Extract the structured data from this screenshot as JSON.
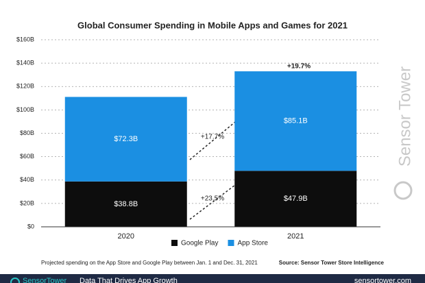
{
  "chart_data": {
    "type": "stacked-bar",
    "title": "Global Consumer Spending in Mobile Apps and Games for 2021",
    "categories": [
      "2020",
      "2021"
    ],
    "series": [
      {
        "name": "Google Play",
        "color": "#0d0d0d",
        "values": [
          38.8,
          47.9
        ],
        "value_labels": [
          "$38.8B",
          "$47.9B"
        ]
      },
      {
        "name": "App Store",
        "color": "#1b8fe2",
        "values": [
          72.3,
          85.1
        ],
        "value_labels": [
          "$72.3B",
          "$85.1B"
        ]
      }
    ],
    "ylim": [
      0,
      160
    ],
    "yticks": [
      {
        "value": 0,
        "label": "$0"
      },
      {
        "value": 20,
        "label": "$20B"
      },
      {
        "value": 40,
        "label": "$40B"
      },
      {
        "value": 60,
        "label": "$60B"
      },
      {
        "value": 80,
        "label": "$80B"
      },
      {
        "value": 100,
        "label": "$100B"
      },
      {
        "value": 120,
        "label": "$120B"
      },
      {
        "value": 140,
        "label": "$140B"
      },
      {
        "value": 160,
        "label": "$160B"
      }
    ],
    "grid": true,
    "annotations": [
      "+19.7%",
      "+17.7%",
      "+23.5%"
    ],
    "note": "Projected spending on the App Store and Google Play between Jan. 1 and Dec. 31, 2021",
    "source": "Source: Sensor Tower Store Intelligence"
  },
  "watermark": "Sensor Tower",
  "footer": {
    "brand": "SensorTower",
    "tagline": "Data That Drives App Growth",
    "url": "sensortower.com"
  }
}
